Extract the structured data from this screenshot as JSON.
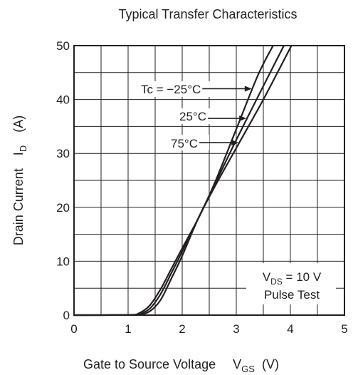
{
  "chart_data": {
    "type": "line",
    "title": "Typical Transfer Characteristics",
    "ylabel": {
      "main": "Drain Current",
      "symbol": "I",
      "sub": "D",
      "unit": "(A)"
    },
    "xlabel": {
      "main": "Gate to Source Voltage",
      "symbol": "V",
      "sub": "GS",
      "unit": "(V)"
    },
    "xlim": [
      0,
      5
    ],
    "ylim": [
      0,
      50
    ],
    "xticks": [
      0,
      1,
      2,
      3,
      4,
      5
    ],
    "yticks": [
      0,
      10,
      20,
      30,
      40,
      50
    ],
    "grid": true,
    "series": [
      {
        "name": "Tc = −25°C",
        "x": [
          0,
          1.0,
          1.2,
          1.4,
          1.6,
          1.8,
          2.0,
          2.3,
          2.6,
          3.0,
          3.4,
          3.68
        ],
        "y": [
          0,
          0.05,
          0.35,
          1.8,
          4.8,
          8.6,
          12.4,
          18.0,
          24.5,
          34.5,
          44.5,
          50
        ]
      },
      {
        "name": "25°C",
        "x": [
          0,
          1.0,
          1.2,
          1.4,
          1.6,
          1.8,
          2.0,
          2.3,
          2.6,
          3.0,
          3.5,
          3.88
        ],
        "y": [
          0,
          0.03,
          0.2,
          1.2,
          3.9,
          7.8,
          11.8,
          18.0,
          24.2,
          32.5,
          42.5,
          50
        ]
      },
      {
        "name": "75°C",
        "x": [
          0,
          1.0,
          1.2,
          1.4,
          1.6,
          1.8,
          2.0,
          2.3,
          2.6,
          3.0,
          3.5,
          4.02
        ],
        "y": [
          0,
          0.02,
          0.1,
          0.7,
          2.8,
          6.8,
          11.0,
          18.0,
          23.8,
          31.0,
          40.0,
          50
        ]
      }
    ],
    "annotations": [
      {
        "text": "Tc = −25°C",
        "series": 0,
        "arrow_to_y": 42
      },
      {
        "text": "25°C",
        "series": 1,
        "arrow_to_y": 36.5
      },
      {
        "text": "75°C",
        "series": 2,
        "arrow_to_y": 32
      }
    ],
    "legend_box": {
      "line1": {
        "symbol": "V",
        "sub": "DS",
        "rest": " = 10 V"
      },
      "line2": "Pulse Test"
    }
  }
}
